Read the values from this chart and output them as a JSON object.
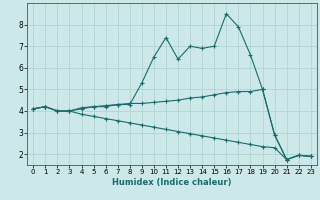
{
  "xlabel": "Humidex (Indice chaleur)",
  "bg_color": "#cce8e8",
  "line_color": "#1a6b6b",
  "grid_color": "#aad0d0",
  "xlim": [
    -0.5,
    23.5
  ],
  "ylim": [
    1.5,
    9.0
  ],
  "xticks": [
    0,
    1,
    2,
    3,
    4,
    5,
    6,
    7,
    8,
    9,
    10,
    11,
    12,
    13,
    14,
    15,
    16,
    17,
    18,
    19,
    20,
    21,
    22,
    23
  ],
  "yticks": [
    2,
    3,
    4,
    5,
    6,
    7,
    8
  ],
  "line1": {
    "x": [
      0,
      1,
      2,
      3,
      4,
      5,
      6,
      7,
      8,
      9,
      10,
      11,
      12,
      13,
      14,
      15,
      16,
      17,
      18,
      19,
      20,
      21,
      22,
      23
    ],
    "y": [
      4.1,
      4.2,
      4.0,
      4.0,
      4.1,
      4.2,
      4.2,
      4.3,
      4.3,
      5.3,
      6.5,
      7.4,
      6.4,
      7.0,
      6.9,
      7.0,
      8.5,
      7.9,
      6.6,
      5.0,
      2.9,
      1.75,
      1.95,
      1.9
    ]
  },
  "line2": {
    "x": [
      0,
      1,
      2,
      3,
      4,
      5,
      6,
      7,
      8,
      9,
      10,
      11,
      12,
      13,
      14,
      15,
      16,
      17,
      18,
      19,
      20,
      21,
      22,
      23
    ],
    "y": [
      4.1,
      4.2,
      4.0,
      4.0,
      4.15,
      4.2,
      4.25,
      4.3,
      4.35,
      4.35,
      4.4,
      4.45,
      4.5,
      4.6,
      4.65,
      4.75,
      4.85,
      4.9,
      4.9,
      5.0,
      2.9,
      1.75,
      1.95,
      1.9
    ]
  },
  "line3": {
    "x": [
      0,
      1,
      2,
      3,
      4,
      5,
      6,
      7,
      8,
      9,
      10,
      11,
      12,
      13,
      14,
      15,
      16,
      17,
      18,
      19,
      20,
      21,
      22,
      23
    ],
    "y": [
      4.1,
      4.2,
      4.0,
      4.0,
      3.85,
      3.75,
      3.65,
      3.55,
      3.45,
      3.35,
      3.25,
      3.15,
      3.05,
      2.95,
      2.85,
      2.75,
      2.65,
      2.55,
      2.45,
      2.35,
      2.3,
      1.75,
      1.95,
      1.9
    ]
  }
}
